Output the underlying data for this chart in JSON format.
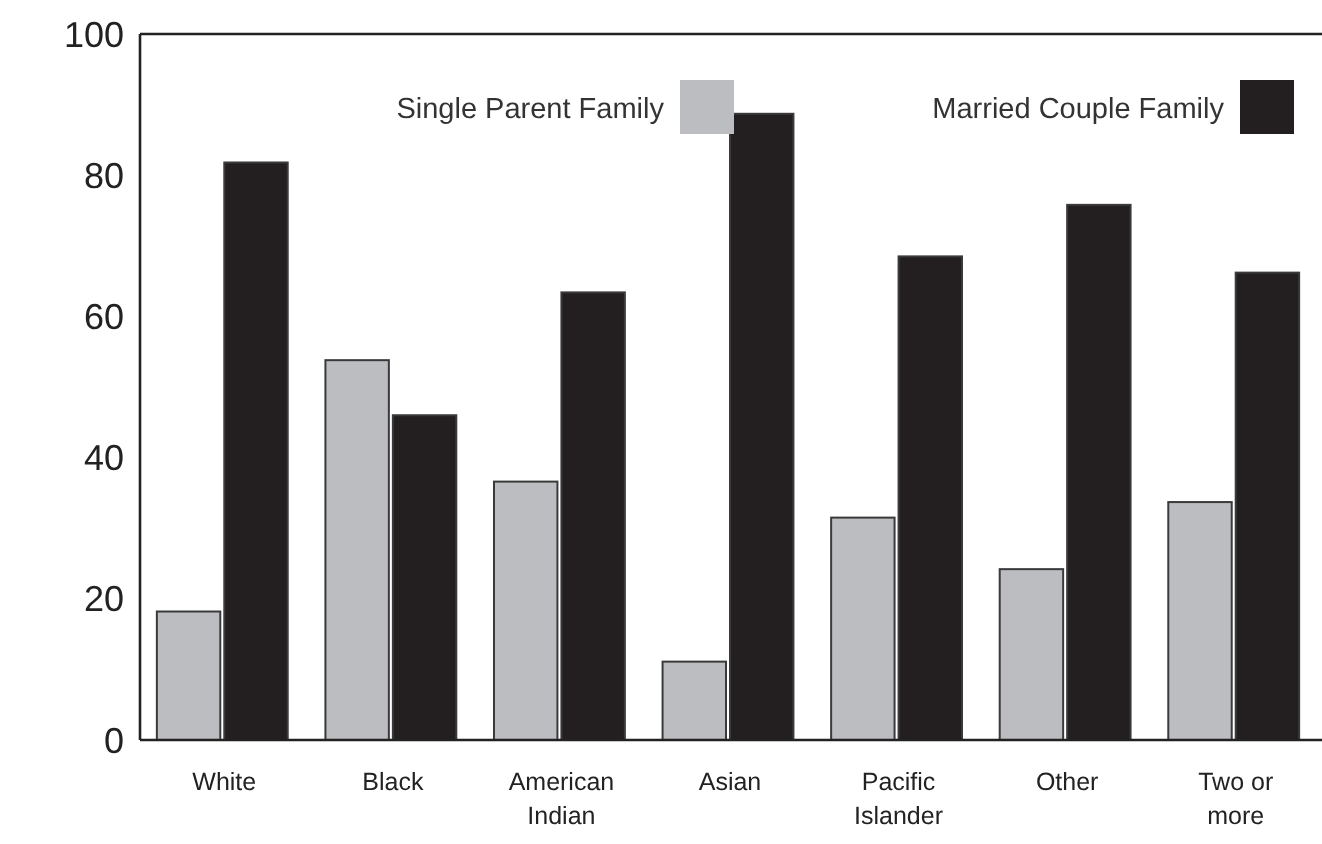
{
  "chart_data": {
    "type": "bar",
    "categories": [
      "White",
      "Black",
      "American Indian",
      "Asian",
      "Pacific Islander",
      "Other",
      "Two or more"
    ],
    "series": [
      {
        "name": "Single Parent Family",
        "color": "#bcbdc1",
        "values": [
          18.2,
          53.8,
          36.6,
          11.1,
          31.5,
          24.2,
          33.7
        ]
      },
      {
        "name": "Married Couple Family",
        "color": "#231f20",
        "values": [
          81.8,
          46.0,
          63.4,
          88.7,
          68.5,
          75.8,
          66.2
        ]
      }
    ],
    "ylim": [
      0,
      100
    ],
    "yticks": [
      0,
      20,
      40,
      60,
      80,
      100
    ],
    "grid": false,
    "legend": "top"
  }
}
